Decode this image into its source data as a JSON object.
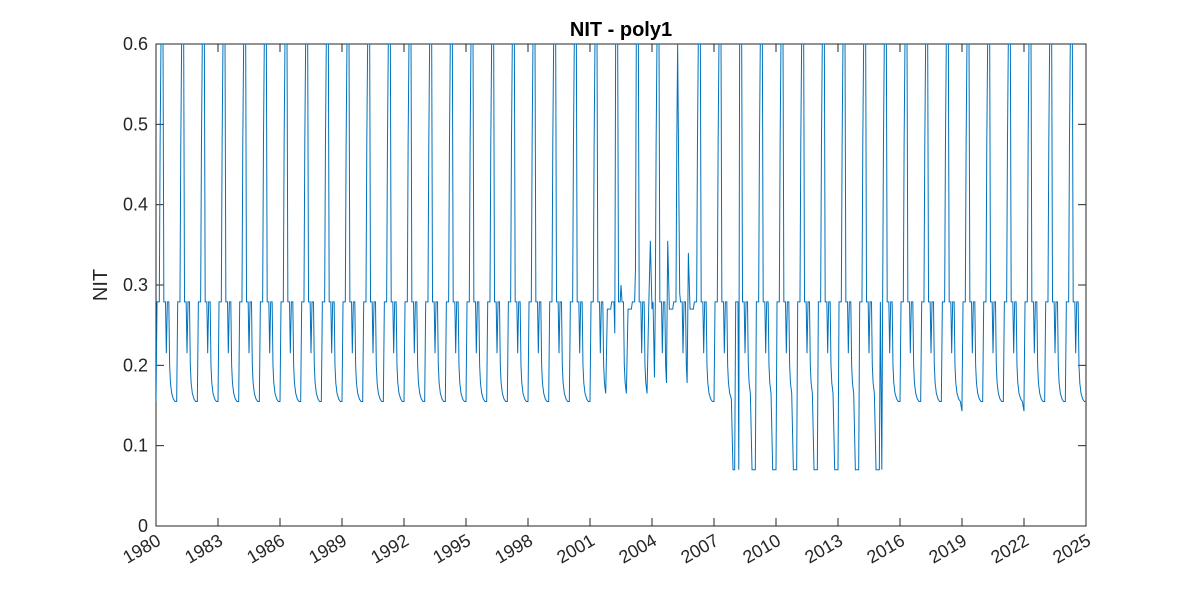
{
  "chart_data": {
    "type": "line",
    "title": "NIT - poly1",
    "xlabel": "",
    "ylabel": "NIT",
    "xlim": [
      1980,
      2025
    ],
    "ylim": [
      0,
      0.6
    ],
    "x_ticks": [
      "1980",
      "1983",
      "1986",
      "1989",
      "1992",
      "1995",
      "1998",
      "2001",
      "2004",
      "2007",
      "2010",
      "2013",
      "2016",
      "2019",
      "2022",
      "2025"
    ],
    "y_ticks": [
      "0",
      "0.1",
      "0.2",
      "0.3",
      "0.4",
      "0.5",
      "0.6"
    ],
    "grid": false,
    "line_color": "#0072BD",
    "series": [
      {
        "name": "",
        "seasonal_pattern": {
          "baseline_low": 0.155,
          "plateau": 0.279,
          "shoulder": 0.215,
          "rise": 0.478,
          "peak_clipped": 0.6
        },
        "anomalies": [
          {
            "x": 2002.2,
            "y": 0.24
          },
          {
            "x": 2002.5,
            "y": 0.3
          },
          {
            "x": 2003.2,
            "y": 0.32
          },
          {
            "x": 2003.9,
            "y": 0.355
          },
          {
            "x": 2004.1,
            "y": 0.185
          },
          {
            "x": 2004.8,
            "y": 0.355
          },
          {
            "x": 2005.3,
            "y": 0.29
          },
          {
            "x": 2005.8,
            "y": 0.34
          },
          {
            "x": 2008.0,
            "y": 0.07
          },
          {
            "x": 2008.2,
            "y": 0.09
          },
          {
            "x": 2011.0,
            "y": 0.09
          },
          {
            "x": 2012.0,
            "y": 0.1
          },
          {
            "x": 2014.0,
            "y": 0.09
          },
          {
            "x": 2015.1,
            "y": 0.105
          },
          {
            "x": 2019.0,
            "y": 0.143
          },
          {
            "x": 2022.0,
            "y": 0.143
          }
        ]
      }
    ]
  }
}
